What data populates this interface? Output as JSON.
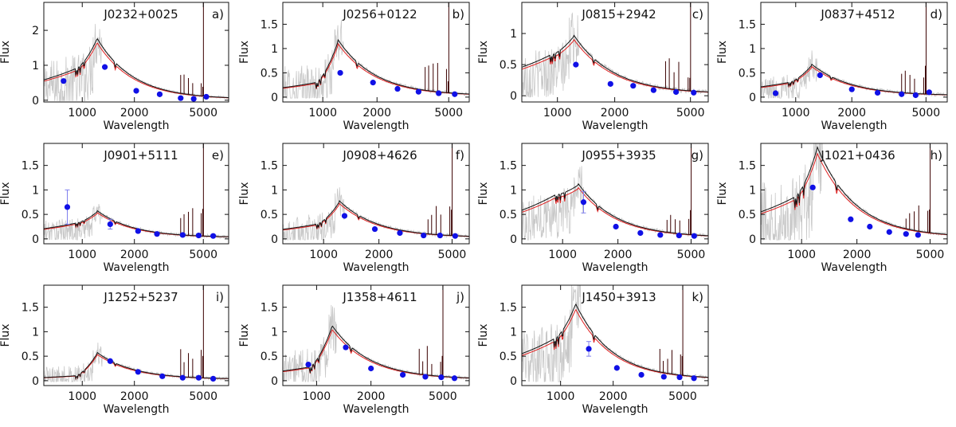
{
  "figure": {
    "ylabel": "Flux",
    "xlabel": "Wavelength",
    "legend_note": "",
    "series_styles": [
      {
        "key": "observed",
        "color": "#c8c8c8"
      },
      {
        "key": "model_black",
        "color": "#111111"
      },
      {
        "key": "model_red",
        "color": "#e02020"
      },
      {
        "key": "photometry",
        "color": "#1010e6"
      },
      {
        "key": "error_bars",
        "color": "#8080ee"
      }
    ]
  },
  "chart_data": [
    {
      "type": "line",
      "title": "J0232+0025",
      "tag": "a)",
      "xlabel": "Wavelength",
      "ylabel": "Flux",
      "xscale": "log",
      "xlim": [
        600,
        7000
      ],
      "ylim": [
        -0.05,
        2.8
      ],
      "xticks": [
        1000,
        2000,
        5000
      ],
      "yticks": [
        0,
        1,
        2
      ],
      "ytick_labels": [
        "0",
        "1",
        "2"
      ],
      "peak": 1.75,
      "continuum": 0.9,
      "photometry": [
        {
          "x": 780,
          "y": 0.55
        },
        {
          "x": 1350,
          "y": 0.95
        },
        {
          "x": 2050,
          "y": 0.27
        },
        {
          "x": 2800,
          "y": 0.17
        },
        {
          "x": 3700,
          "y": 0.06
        },
        {
          "x": 4400,
          "y": 0.04
        },
        {
          "x": 5200,
          "y": 0.1
        }
      ]
    },
    {
      "type": "line",
      "title": "J0256+0122",
      "tag": "b)",
      "xlabel": "Wavelength",
      "ylabel": "Flux",
      "xscale": "log",
      "xlim": [
        600,
        6500
      ],
      "ylim": [
        -0.1,
        1.95
      ],
      "xticks": [
        1000,
        2000,
        5000
      ],
      "yticks": [
        0,
        0.5,
        1,
        1.5
      ],
      "ytick_labels": [
        "0",
        "0.5",
        "1",
        "1.5"
      ],
      "peak": 1.15,
      "continuum": 0.3,
      "photometry": [
        {
          "x": 1250,
          "y": 0.5
        },
        {
          "x": 1900,
          "y": 0.3
        },
        {
          "x": 2600,
          "y": 0.17
        },
        {
          "x": 3400,
          "y": 0.11
        },
        {
          "x": 4400,
          "y": 0.08
        },
        {
          "x": 5400,
          "y": 0.06
        }
      ]
    },
    {
      "type": "line",
      "title": "J0815+2942",
      "tag": "c)",
      "xlabel": "Wavelength",
      "ylabel": "Flux",
      "xscale": "log",
      "xlim": [
        650,
        6200
      ],
      "ylim": [
        -0.1,
        1.5
      ],
      "xticks": [
        1000,
        2000,
        5000
      ],
      "yticks": [
        0,
        0.5,
        1
      ],
      "ytick_labels": [
        "0",
        "0.5",
        "1"
      ],
      "peak": 0.95,
      "continuum": 0.65,
      "photometry": [
        {
          "x": 1250,
          "y": 0.5
        },
        {
          "x": 1900,
          "y": 0.19
        },
        {
          "x": 2500,
          "y": 0.16
        },
        {
          "x": 3200,
          "y": 0.09
        },
        {
          "x": 4200,
          "y": 0.06
        },
        {
          "x": 5200,
          "y": 0.05
        }
      ]
    },
    {
      "type": "line",
      "title": "J0837+4512",
      "tag": "d)",
      "xlabel": "Wavelength",
      "ylabel": "Flux",
      "xscale": "log",
      "xlim": [
        650,
        6500
      ],
      "ylim": [
        -0.1,
        1.95
      ],
      "xticks": [
        1000,
        2000,
        5000
      ],
      "yticks": [
        0,
        0.5,
        1,
        1.5
      ],
      "ytick_labels": [
        "0",
        "0.5",
        "1",
        "1.5"
      ],
      "peak": 0.65,
      "continuum": 0.3,
      "photometry": [
        {
          "x": 780,
          "y": 0.08
        },
        {
          "x": 1350,
          "y": 0.45
        },
        {
          "x": 2000,
          "y": 0.16
        },
        {
          "x": 2750,
          "y": 0.09
        },
        {
          "x": 3700,
          "y": 0.06
        },
        {
          "x": 4400,
          "y": 0.04
        },
        {
          "x": 5200,
          "y": 0.1
        }
      ]
    },
    {
      "type": "line",
      "title": "J0901+5111",
      "tag": "e)",
      "xlabel": "Wavelength",
      "ylabel": "Flux",
      "xscale": "log",
      "xlim": [
        600,
        7000
      ],
      "ylim": [
        -0.1,
        1.95
      ],
      "xticks": [
        1000,
        2000,
        5000
      ],
      "yticks": [
        0,
        0.5,
        1,
        1.5
      ],
      "ytick_labels": [
        "0",
        "0.5",
        "1",
        "1.5"
      ],
      "peak": 0.55,
      "continuum": 0.32,
      "photometry": [
        {
          "x": 820,
          "y": 0.65,
          "err": 0.35
        },
        {
          "x": 1450,
          "y": 0.3,
          "err": 0.1
        },
        {
          "x": 2100,
          "y": 0.16
        },
        {
          "x": 2700,
          "y": 0.1
        },
        {
          "x": 3800,
          "y": 0.08
        },
        {
          "x": 4700,
          "y": 0.07
        },
        {
          "x": 5700,
          "y": 0.06
        }
      ]
    },
    {
      "type": "line",
      "title": "J0908+4626",
      "tag": "f)",
      "xlabel": "Wavelength",
      "ylabel": "Flux",
      "xscale": "log",
      "xlim": [
        600,
        6200
      ],
      "ylim": [
        -0.1,
        1.95
      ],
      "xticks": [
        1000,
        2000,
        5000
      ],
      "yticks": [
        0,
        0.5,
        1,
        1.5
      ],
      "ytick_labels": [
        "0",
        "0.5",
        "1",
        "1.5"
      ],
      "peak": 0.75,
      "continuum": 0.3,
      "photometry": [
        {
          "x": 1300,
          "y": 0.47
        },
        {
          "x": 1900,
          "y": 0.2
        },
        {
          "x": 2600,
          "y": 0.12
        },
        {
          "x": 3500,
          "y": 0.07
        },
        {
          "x": 4300,
          "y": 0.07
        },
        {
          "x": 5200,
          "y": 0.06
        }
      ]
    },
    {
      "type": "line",
      "title": "J0955+3935",
      "tag": "g)",
      "xlabel": "Wavelength",
      "ylabel": "Flux",
      "xscale": "log",
      "xlim": [
        600,
        6200
      ],
      "ylim": [
        -0.1,
        1.95
      ],
      "xticks": [
        1000,
        2000,
        5000
      ],
      "yticks": [
        0,
        0.5,
        1,
        1.5
      ],
      "ytick_labels": [
        "0",
        "0.5",
        "1",
        "1.5"
      ],
      "peak": 1.1,
      "continuum": 0.9,
      "photometry": [
        {
          "x": 1300,
          "y": 0.75,
          "err": 0.22
        },
        {
          "x": 1950,
          "y": 0.25
        },
        {
          "x": 2650,
          "y": 0.12
        },
        {
          "x": 3400,
          "y": 0.08
        },
        {
          "x": 4300,
          "y": 0.07
        },
        {
          "x": 5200,
          "y": 0.06
        }
      ]
    },
    {
      "type": "line",
      "title": "J1021+0436",
      "tag": "h)",
      "xlabel": "Wavelength",
      "ylabel": "Flux",
      "xscale": "log",
      "xlim": [
        600,
        6200
      ],
      "ylim": [
        -0.1,
        1.95
      ],
      "xticks": [
        1000,
        2000,
        5000
      ],
      "yticks": [
        0,
        0.5,
        1,
        1.5
      ],
      "ytick_labels": [
        "0",
        "0.5",
        "1",
        "1.5"
      ],
      "peak": 1.85,
      "continuum": 0.85,
      "photometry": [
        {
          "x": 1150,
          "y": 1.05
        },
        {
          "x": 1850,
          "y": 0.4
        },
        {
          "x": 2350,
          "y": 0.25
        },
        {
          "x": 3000,
          "y": 0.14
        },
        {
          "x": 3700,
          "y": 0.1
        },
        {
          "x": 4300,
          "y": 0.08
        }
      ]
    },
    {
      "type": "line",
      "title": "J1252+5237",
      "tag": "i)",
      "xlabel": "Wavelength",
      "ylabel": "Flux",
      "xscale": "log",
      "xlim": [
        600,
        7000
      ],
      "ylim": [
        -0.1,
        1.95
      ],
      "xticks": [
        1000,
        2000,
        5000
      ],
      "yticks": [
        0,
        0.5,
        1,
        1.5
      ],
      "ytick_labels": [
        "0",
        "0.5",
        "1",
        "1.5"
      ],
      "peak": 0.55,
      "continuum": 0.1,
      "photometry": [
        {
          "x": 1450,
          "y": 0.4
        },
        {
          "x": 2100,
          "y": 0.18
        },
        {
          "x": 2900,
          "y": 0.09
        },
        {
          "x": 3800,
          "y": 0.06
        },
        {
          "x": 4700,
          "y": 0.06
        },
        {
          "x": 5700,
          "y": 0.04
        }
      ]
    },
    {
      "type": "line",
      "title": "J1358+4611",
      "tag": "j)",
      "xlabel": "Wavelength",
      "ylabel": "Flux",
      "xscale": "log",
      "xlim": [
        650,
        7000
      ],
      "ylim": [
        -0.1,
        1.95
      ],
      "xticks": [
        1000,
        2000,
        5000
      ],
      "yticks": [
        0,
        0.5,
        1,
        1.5
      ],
      "ytick_labels": [
        "0",
        "0.5",
        "1",
        "1.5"
      ],
      "peak": 1.1,
      "continuum": 0.28,
      "photometry": [
        {
          "x": 900,
          "y": 0.33
        },
        {
          "x": 1450,
          "y": 0.68
        },
        {
          "x": 2000,
          "y": 0.25
        },
        {
          "x": 3000,
          "y": 0.12
        },
        {
          "x": 4000,
          "y": 0.08
        },
        {
          "x": 4900,
          "y": 0.07
        },
        {
          "x": 5800,
          "y": 0.05
        }
      ]
    },
    {
      "type": "line",
      "title": "J1450+3913",
      "tag": "k)",
      "xlabel": "Wavelength",
      "ylabel": "Flux",
      "xscale": "log",
      "xlim": [
        600,
        7000
      ],
      "ylim": [
        -0.1,
        1.95
      ],
      "xticks": [
        1000,
        2000,
        5000
      ],
      "yticks": [
        0,
        0.5,
        1,
        1.5
      ],
      "ytick_labels": [
        "0",
        "0.5",
        "1",
        "1.5"
      ],
      "peak": 1.55,
      "continuum": 0.85,
      "photometry": [
        {
          "x": 1450,
          "y": 0.65,
          "err": 0.15
        },
        {
          "x": 2100,
          "y": 0.26
        },
        {
          "x": 2900,
          "y": 0.12
        },
        {
          "x": 3900,
          "y": 0.08
        },
        {
          "x": 4800,
          "y": 0.07
        },
        {
          "x": 5800,
          "y": 0.05
        }
      ]
    }
  ]
}
